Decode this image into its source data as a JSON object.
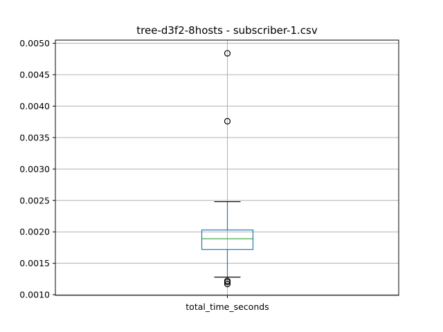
{
  "chart_data": {
    "type": "box",
    "title": "tree-d3f2-8hosts - subscriber-1.csv",
    "xlabel": "",
    "ylabel": "",
    "categories": [
      "total_time_seconds"
    ],
    "ylim": [
      0.00099,
      0.00505
    ],
    "yticks": [
      "0.0010",
      "0.0015",
      "0.0020",
      "0.0025",
      "0.0030",
      "0.0035",
      "0.0040",
      "0.0045",
      "0.0050"
    ],
    "grid": true,
    "boxes": [
      {
        "category": "total_time_seconds",
        "whisker_low": 0.00128,
        "q1": 0.00172,
        "median": 0.00189,
        "q3": 0.00203,
        "whisker_high": 0.00248,
        "outliers": [
          0.00484,
          0.00376,
          0.00122,
          0.0012,
          0.00117
        ]
      }
    ],
    "colors": {
      "box": "#1f77b4",
      "median": "#2ca02c",
      "whisker_cap": "#000000",
      "grid": "#b0b0b0",
      "outlier_edge": "#000000"
    }
  }
}
